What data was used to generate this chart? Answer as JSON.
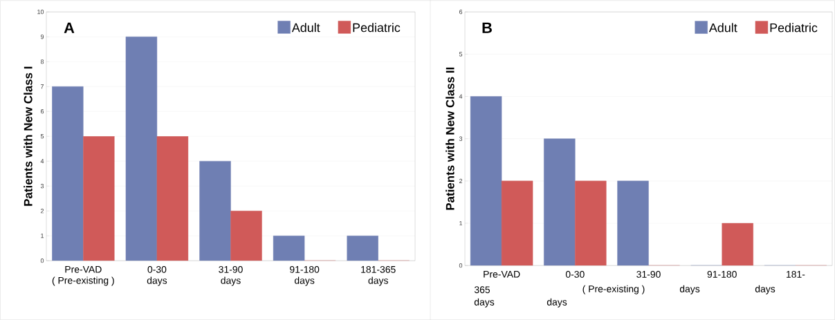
{
  "chart_data": [
    {
      "type": "bar",
      "categories": [
        "Pre-VAD\n( Pre-existing )",
        "0-30\ndays",
        "31-90\ndays",
        "91-180\ndays",
        "181-365\ndays"
      ],
      "ylabel": "Patients with New Class I",
      "ylim": [
        0,
        10
      ],
      "yticks": [
        0,
        1,
        2,
        3,
        4,
        5,
        6,
        7,
        8,
        9,
        10
      ],
      "grid": "y",
      "legend": "top right",
      "series": [
        {
          "name": "Adult",
          "color": "#6f7fb3",
          "values": [
            7,
            9,
            4,
            1,
            1
          ]
        },
        {
          "name": "Pediatric",
          "color": "#d05a59",
          "values": [
            5,
            5,
            2,
            0,
            0
          ]
        }
      ],
      "annotations": [
        "A"
      ]
    },
    {
      "type": "bar",
      "categories": [
        "Pre-VAD",
        "0-30",
        "31-90",
        "91-180",
        "181-"
      ],
      "ylabel": "Patients with New Class II",
      "ylim": [
        0,
        6
      ],
      "yticks": [
        0,
        1,
        2,
        3,
        4,
        5,
        6
      ],
      "grid": "y",
      "legend": "top right",
      "series": [
        {
          "name": "Adult",
          "color": "#6f7fb3",
          "values": [
            4,
            3,
            2,
            0,
            0
          ]
        },
        {
          "name": "Pediatric",
          "color": "#d05a59",
          "values": [
            2,
            2,
            0,
            1,
            0
          ]
        }
      ],
      "annotations": [
        "B",
        "365",
        "( Pre-existing )",
        "days",
        "days",
        "days",
        "days"
      ]
    }
  ]
}
